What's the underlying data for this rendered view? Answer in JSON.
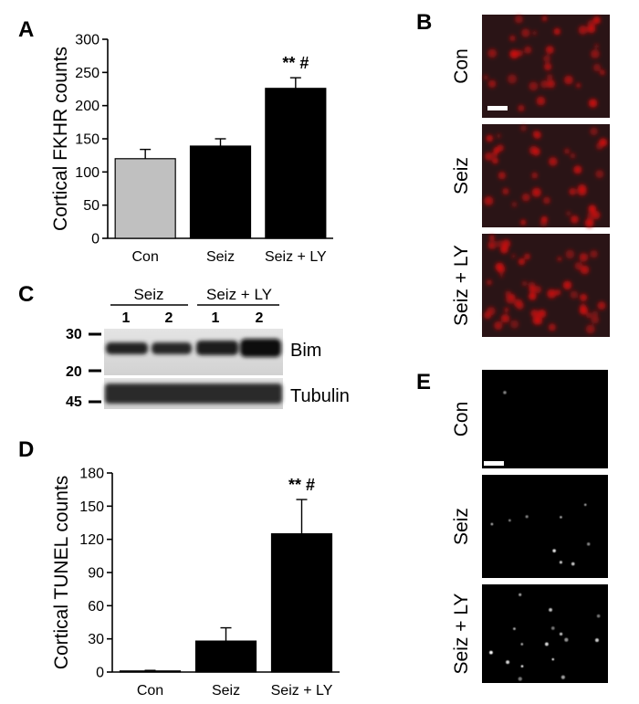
{
  "panels": {
    "A": "A",
    "B": "B",
    "C": "C",
    "D": "D",
    "E": "E"
  },
  "chart_data": [
    {
      "panel": "A",
      "type": "bar",
      "categories": [
        "Con",
        "Seiz",
        "Seiz + LY"
      ],
      "values": [
        120,
        139,
        226
      ],
      "errors": [
        14,
        11,
        16
      ],
      "bar_colors": [
        "#c0c0c0",
        "#000000",
        "#000000"
      ],
      "significance": [
        "",
        "",
        "** #"
      ],
      "ylabel": "Cortical FKHR counts",
      "ylim": [
        0,
        300
      ],
      "yticks": [
        0,
        50,
        100,
        150,
        200,
        250,
        300
      ]
    },
    {
      "panel": "D",
      "type": "bar",
      "categories": [
        "Con",
        "Seiz",
        "Seiz + LY"
      ],
      "values": [
        1,
        28,
        125
      ],
      "errors": [
        0.5,
        12,
        31
      ],
      "bar_colors": [
        "#c0c0c0",
        "#000000",
        "#000000"
      ],
      "significance": [
        "",
        "",
        "** #"
      ],
      "ylabel": "Cortical TUNEL counts",
      "ylim": [
        0,
        180
      ],
      "yticks": [
        0,
        30,
        60,
        90,
        120,
        150,
        180
      ]
    }
  ],
  "micrographs_B": {
    "labels": [
      "Con",
      "Seiz",
      "Seiz + LY"
    ],
    "color": "#cc1010"
  },
  "micrographs_E": {
    "labels": [
      "Con",
      "Seiz",
      "Seiz + LY"
    ],
    "color": "#ffffff"
  },
  "western_blot": {
    "groups": [
      "Seiz",
      "Seiz + LY"
    ],
    "lanes": [
      "1",
      "2",
      "1",
      "2"
    ],
    "mw_markers": [
      "30",
      "20",
      "45"
    ],
    "bands": [
      "Bim",
      "Tubulin"
    ]
  }
}
